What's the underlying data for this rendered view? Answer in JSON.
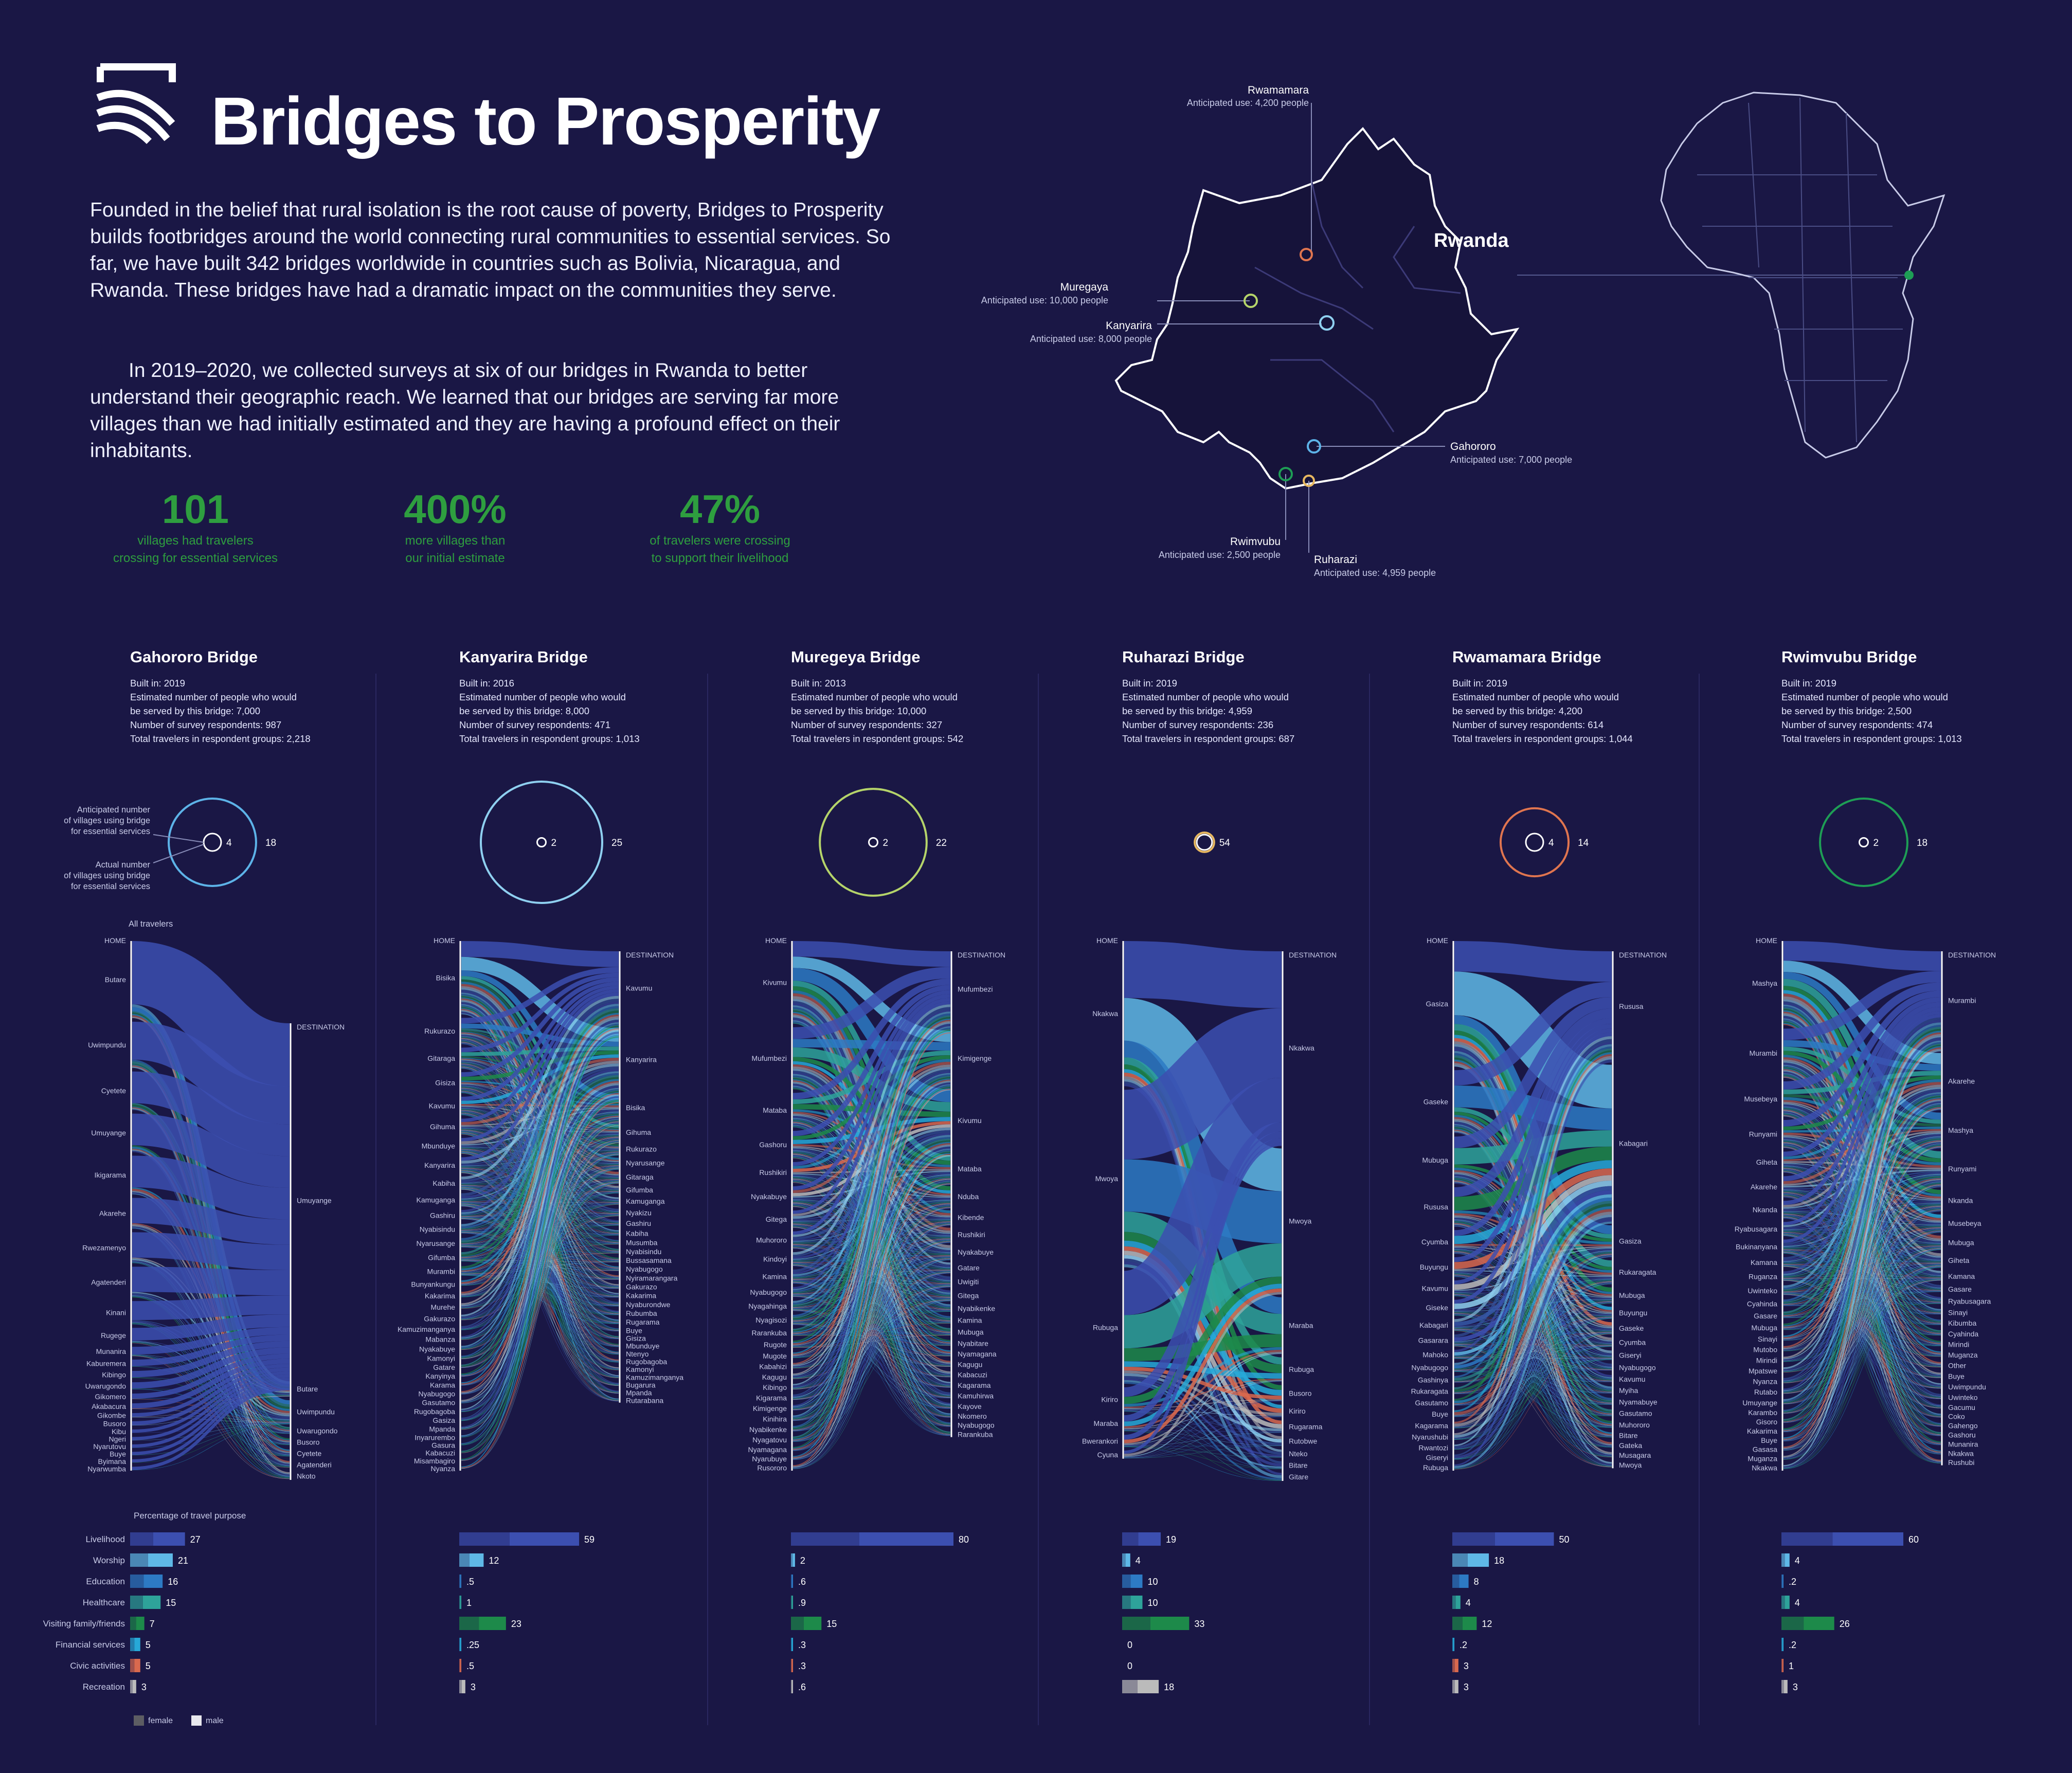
{
  "header": {
    "title": "Bridges to Prosperity",
    "intro_1": "Founded in the belief that rural isolation is the root cause of poverty, Bridges to Prosperity builds footbridges around the world connecting rural communities to essential services.  So far, we have built 342 bridges worldwide in countries such as Bolivia,  Nicaragua, and Rwanda. These bridges have had a dramatic impact on the communities they serve.",
    "intro_2": "In 2019–2020, we collected surveys at six of our bridges in Rwanda to better understand their geographic reach.  We learned that our bridges are serving far more villages than we had initially estimated and they are having a profound effect on their inhabitants."
  },
  "stats": [
    {
      "value": "101",
      "caption_1": "villages had travelers",
      "caption_2": "crossing for essential services"
    },
    {
      "value": "400%",
      "caption_1": "more villages than",
      "caption_2": "our initial estimate"
    },
    {
      "value": "47%",
      "caption_1": "of travelers were crossing",
      "caption_2": "to support their livelihood"
    }
  ],
  "map": {
    "country": "Rwanda",
    "pins": [
      {
        "name": "Rwamamara",
        "use": "Anticipated use: 4,200 people",
        "color": "#e0754f"
      },
      {
        "name": "Muregaya",
        "use": "Anticipated use: 10,000 people",
        "color": "#b5d46a"
      },
      {
        "name": "Kanyarira",
        "use": "Anticipated use: 8,000 people",
        "color": "#8fd0f0"
      },
      {
        "name": "Gahororo",
        "use": "Anticipated use:  7,000 people",
        "color": "#5db3e8"
      },
      {
        "name": "Rwimvubu",
        "use": "Anticipated use: 2,500 people",
        "color": "#1e9e55"
      },
      {
        "name": "Ruharazi",
        "use": "Anticipated use:  4,959 people",
        "color": "#e8b860"
      }
    ]
  },
  "chart_data": {
    "type": "sankey",
    "legend": [
      "female",
      "male"
    ],
    "travel_purpose_title": "Percentage of travel purpose",
    "purposes": [
      "Livelihood",
      "Worship",
      "Education",
      "Healthcare",
      "Visiting family/friends",
      "Financial services",
      "Civic activities",
      "Recreation"
    ],
    "purpose_colors": [
      "#3c4fb0",
      "#5fb8e6",
      "#2d7ac4",
      "#2ea39a",
      "#1d8a4a",
      "#27a9d8",
      "#d9694e",
      "#bbbbbb"
    ],
    "circle_labels": {
      "anticipated_1": "Anticipated number",
      "anticipated_2": "of villages using bridge",
      "anticipated_3": "for essential services",
      "actual_1": "Actual number",
      "actual_2": "of villages using bridge",
      "actual_3": "for essential services",
      "all_travelers": "All travelers"
    },
    "bridges": [
      {
        "name": "Gahororo Bridge",
        "meta": [
          "Built in: 2019",
          "Estimated number of people who would",
          "be served by this bridge: 7,000",
          "Number of survey respondents: 987",
          "Total travelers in respondent groups: 2,218"
        ],
        "anticipated": 4,
        "actual": 18,
        "color": "#5db3e8",
        "home": [
          "Butare",
          "Uwimpundu",
          "Cyetete",
          "Umuyange",
          "Ikigarama",
          "Akarehe",
          "Rwezamenyo",
          "Agatenderi",
          "Kinani",
          "Rugege",
          "Munanira",
          "Kaburemera",
          "Kibingo",
          "Uwarugondo",
          "Gikomero",
          "Akabacura",
          "Gikombe",
          "Busoro",
          "Kibu",
          "Ngeri",
          "Nyarutovu",
          "Buye",
          "Byimana",
          "Nyarwumba"
        ],
        "home_w": [
          10,
          6,
          5,
          5,
          5,
          4,
          4,
          4,
          3,
          2,
          1.2,
          1,
          1,
          1,
          0.8,
          0.8,
          0.6,
          0.6,
          0.5,
          0.5,
          0.5,
          0.5,
          0.5,
          0.5
        ],
        "dest": [
          "Umuyange",
          "Butare",
          "Uwimpundu",
          "Uwarugondo",
          "Busoro",
          "Cyetete",
          "Agatenderi",
          "Nkoto"
        ],
        "dest_w": [
          46,
          2,
          3,
          1,
          1,
          1,
          1,
          1
        ],
        "purpose_values": [
          "27",
          "21",
          "16",
          "15",
          "7",
          "5",
          "5",
          "3"
        ],
        "purpose_nums": [
          27,
          21,
          16,
          15,
          7,
          5,
          5,
          3
        ]
      },
      {
        "name": "Kanyarira Bridge",
        "meta": [
          "Built in: 2016",
          "Estimated number of people who would",
          "be served by this bridge: 8,000",
          "Number of survey respondents: 471",
          "Total travelers in respondent groups: 1,013"
        ],
        "anticipated": 2,
        "actual": 25,
        "color": "#8fd0f0",
        "home": [
          "Bisika",
          "Rukurazo",
          "Gitaraga",
          "Gisiza",
          "Kavumu",
          "Gihuma",
          "Mbunduye",
          "Kanyarira",
          "Kabiha",
          "Kamuganga",
          "Gashiru",
          "Nyabisindu",
          "Nyarusange",
          "Gifumba",
          "Murambi",
          "Bunyankungu",
          "Kakarima",
          "Murehe",
          "Gakurazo",
          "Kamuzimanganya",
          "Mabanza",
          "Nyakabuye",
          "Kamonyi",
          "Gatare",
          "Kanyinya",
          "Karama",
          "Nyabugogo",
          "Gasutamo",
          "Rugobagoba",
          "Gasiza",
          "Mpanda",
          "Inyarurembo",
          "Gasura",
          "Kabacuzi",
          "Misambagiro",
          "Nyanza"
        ],
        "home_w": [
          14,
          5,
          4,
          4,
          3.5,
          3,
          3,
          3,
          2.5,
          2.5,
          2,
          2,
          2,
          2,
          2,
          1.5,
          1.5,
          1.5,
          1.5,
          1.2,
          1.2,
          1.2,
          1,
          1,
          1,
          1,
          1,
          1,
          1,
          1,
          1,
          0.8,
          0.8,
          0.8,
          0.8,
          0.8
        ],
        "dest": [
          "Kavumu",
          "Kanyarira",
          "Bisika",
          "Gihuma",
          "Rukurazo",
          "Nyarusange",
          "Gitaraga",
          "Gifumba",
          "Kamuganga",
          "Nyakizu",
          "Gashiru",
          "Kabiha",
          "Musumba",
          "Nyabisindu",
          "Bussasamana",
          "Nyabugogo",
          "Nyiramarangara",
          "Gakurazo",
          "Kakarima",
          "Nyaburondwe",
          "Rubumba",
          "Rugarama",
          "Buye",
          "Gisiza",
          "Mbunduye",
          "Ntenyo",
          "Rugobagoba",
          "Kamonyi",
          "Kamuzimanganya",
          "Bugarura",
          "Mpanda",
          "Rutarabana"
        ],
        "dest_w": [
          14,
          12,
          5,
          3,
          2,
          2,
          2,
          1.5,
          1.5,
          1.5,
          1.2,
          1.2,
          1,
          1,
          1,
          1,
          1,
          1,
          1,
          1,
          1,
          1,
          0.8,
          0.8,
          0.8,
          0.8,
          0.8,
          0.8,
          0.8,
          0.8,
          0.8,
          0.8
        ],
        "purpose_values": [
          "59",
          "12",
          ".5",
          "1",
          "23",
          ".25",
          ".5",
          "3"
        ],
        "purpose_nums": [
          59,
          12,
          0.5,
          1,
          23,
          0.25,
          0.5,
          3
        ]
      },
      {
        "name": "Muregeya Bridge",
        "meta": [
          "Built in: 2013",
          "Estimated number of people who would",
          "be served by this bridge: 10,000",
          "Number of survey respondents: 327",
          "Total travelers in respondent groups: 542"
        ],
        "anticipated": 2,
        "actual": 22,
        "color": "#b5d46a",
        "home": [
          "Kivumu",
          "Mufumbezi",
          "Mataba",
          "Gashoru",
          "Rushikiri",
          "Nyakabuye",
          "Gitega",
          "Muhororo",
          "Kindoyi",
          "Kamina",
          "Nyabugogo",
          "Nyagahinga",
          "Nyagisozi",
          "Rarankuba",
          "Rugote",
          "Mugote",
          "Kabahizi",
          "Kagugu",
          "Kibingo",
          "Kigarama",
          "Kimigenge",
          "Kinihira",
          "Nyabikenke",
          "Nyagatovu",
          "Nyamagana",
          "Nyarubuye",
          "Rusororo"
        ],
        "home_w": [
          12,
          9,
          5,
          4,
          3,
          3,
          2.5,
          2.5,
          2,
          2,
          1.5,
          1.5,
          1.5,
          1.2,
          1.2,
          1,
          1,
          1,
          1,
          1,
          1,
          1,
          1,
          1,
          0.8,
          0.8,
          0.8
        ],
        "dest": [
          "Mufumbezi",
          "Kimigenge",
          "Kivumu",
          "Mataba",
          "Nduba",
          "Kibende",
          "Rushikiri",
          "Nyakabuye",
          "Gatare",
          "Uwigiti",
          "Gitega",
          "Nyabikenke",
          "Kamina",
          "Mubuga",
          "Nyabitare",
          "Nyamagana",
          "Kagugu",
          "Kabacuzi",
          "Kagarama",
          "Kamuhirwa",
          "Kayove",
          "Nkomero",
          "Nyabugogo",
          "Rarankuba"
        ],
        "dest_w": [
          11,
          8,
          9,
          4,
          3,
          2,
          2,
          2,
          1.5,
          1.5,
          1.5,
          1.2,
          1.2,
          1.2,
          1,
          1,
          1,
          1,
          1,
          1,
          1,
          0.8,
          0.8,
          0.8
        ],
        "purpose_values": [
          "80",
          "2",
          ".6",
          ".9",
          "15",
          ".3",
          ".3",
          ".6"
        ],
        "purpose_nums": [
          80,
          2,
          0.6,
          0.9,
          15,
          0.3,
          0.3,
          0.6
        ]
      },
      {
        "name": "Ruharazi Bridge",
        "meta": [
          "Built in: 2019",
          "Estimated number of people who would",
          "be served by this bridge: 4,959",
          "Number of survey respondents: 236",
          "Total travelers in respondent groups: 687"
        ],
        "anticipated": 5,
        "actual": 4,
        "color": "#e8b860",
        "home": [
          "Nkakwa",
          "Mwoya",
          "Rubuga",
          "Kiriro",
          "Maraba",
          "Bwerankori",
          "Cyuna"
        ],
        "home_w": [
          18,
          22,
          14,
          3,
          2,
          1.5,
          1
        ],
        "dest": [
          "Nkakwa",
          "Mwoya",
          "Maraba",
          "Rubuga",
          "Busoro",
          "Kiriro",
          "Rugarama",
          "Rutobwe",
          "Nteko",
          "Bitare",
          "Gitare"
        ],
        "dest_w": [
          24,
          18,
          7,
          3,
          2,
          1.5,
          1.5,
          1.2,
          1,
          1,
          1
        ],
        "purpose_values": [
          "19",
          "4",
          "10",
          "10",
          "33",
          "0",
          "0",
          "18"
        ],
        "purpose_nums": [
          19,
          4,
          10,
          10,
          33,
          0,
          0,
          18
        ]
      },
      {
        "name": "Rwamamara Bridge",
        "meta": [
          "Built in: 2019",
          "Estimated number of people who would",
          "be served by this bridge: 4,200",
          "Number of survey respondents: 614",
          "Total travelers in respondent groups: 1,044"
        ],
        "anticipated": 4,
        "actual": 14,
        "color": "#e0754f",
        "home": [
          "Gasiza",
          "Gaseke",
          "Mubuga",
          "Rususa",
          "Cyumba",
          "Buyungu",
          "Kavumu",
          "Giseke",
          "Kabagari",
          "Gasarara",
          "Mahoko",
          "Nyabugogo",
          "Gashinya",
          "Rukaragata",
          "Gasutamo",
          "Buye",
          "Kagarama",
          "Nyarushubi",
          "Rwantozi",
          "Giseryi",
          "Rubuga"
        ],
        "home_w": [
          16,
          8,
          6,
          5,
          3,
          2.5,
          2,
          2,
          1.5,
          1.5,
          1.2,
          1.2,
          1,
          1,
          1,
          1,
          1,
          1,
          0.8,
          0.8,
          0.8
        ],
        "dest": [
          "Rususa",
          "Kabagari",
          "Gasiza",
          "Rukaragata",
          "Mubuga",
          "Buyungu",
          "Gaseke",
          "Cyumba",
          "Giseryi",
          "Nyabugogo",
          "Kavumu",
          "Myiha",
          "Nyamabuye",
          "Gasutamo",
          "Muhororo",
          "Bitare",
          "Gateka",
          "Musagara",
          "Mwoya"
        ],
        "dest_w": [
          14,
          20,
          4,
          3,
          2,
          1.5,
          1.5,
          1.2,
          1.2,
          1,
          1,
          1,
          1,
          1,
          1,
          0.8,
          0.8,
          0.8,
          0.8
        ],
        "purpose_values": [
          "50",
          "18",
          "8",
          "4",
          "12",
          ".2",
          "3",
          "3"
        ],
        "purpose_nums": [
          50,
          18,
          8,
          4,
          12,
          0.2,
          3,
          3
        ]
      },
      {
        "name": "Rwimvubu Bridge",
        "meta": [
          "Built in: 2019",
          "Estimated number of people who would",
          "be served by this bridge: 2,500",
          "Number of survey respondents: 474",
          "Total travelers in respondent groups: 1,013"
        ],
        "anticipated": 2,
        "actual": 18,
        "color": "#1e9e55",
        "home": [
          "Mashya",
          "Murambi",
          "Musebeya",
          "Runyami",
          "Giheta",
          "Akarehe",
          "Nkanda",
          "Ryabusagara",
          "Bukinanyana",
          "Kamana",
          "Ruganza",
          "Uwinteko",
          "Cyahinda",
          "Gasare",
          "Mubuga",
          "Sinayi",
          "Mutobo",
          "Mirindi",
          "Mpatswe",
          "Nyanza",
          "Rutabo",
          "Umuyange",
          "Karambo",
          "Gisoro",
          "Kakarima",
          "Buye",
          "Gasasa",
          "Muganza",
          "Nkakwa"
        ],
        "home_w": [
          12,
          7,
          5,
          4,
          3,
          3,
          2.5,
          2,
          2,
          1.5,
          1.5,
          1.5,
          1.2,
          1.2,
          1.2,
          1,
          1,
          1,
          1,
          1,
          1,
          1,
          0.8,
          0.8,
          0.8,
          0.8,
          0.8,
          0.8,
          0.8
        ],
        "dest": [
          "Murambi",
          "Akarehe",
          "Mashya",
          "Runyami",
          "Nkanda",
          "Musebeya",
          "Mubuga",
          "Giheta",
          "Kamana",
          "Gasare",
          "Ryabusagara",
          "Sinayi",
          "Kibumba",
          "Cyahinda",
          "Mirindi",
          "Muganza",
          "Other",
          "Buye",
          "Uwimpundu",
          "Uwinteko",
          "Gacumu",
          "Coko",
          "Gahengo",
          "Gashoru",
          "Munanira",
          "Nkakwa",
          "Rushubi"
        ],
        "dest_w": [
          14,
          8,
          5,
          5,
          3,
          2.5,
          2,
          2,
          1.5,
          1.2,
          1.2,
          1,
          1,
          1,
          1,
          1,
          1,
          1,
          1,
          1,
          0.8,
          0.8,
          0.8,
          0.8,
          0.8,
          0.8,
          0.8
        ],
        "purpose_values": [
          "60",
          "4",
          ".2",
          "4",
          "26",
          ".2",
          "1",
          "3"
        ],
        "purpose_nums": [
          60,
          4,
          0.2,
          4,
          26,
          0.2,
          1,
          3
        ]
      }
    ],
    "labels": {
      "home": "HOME",
      "destination": "DESTINATION"
    }
  }
}
